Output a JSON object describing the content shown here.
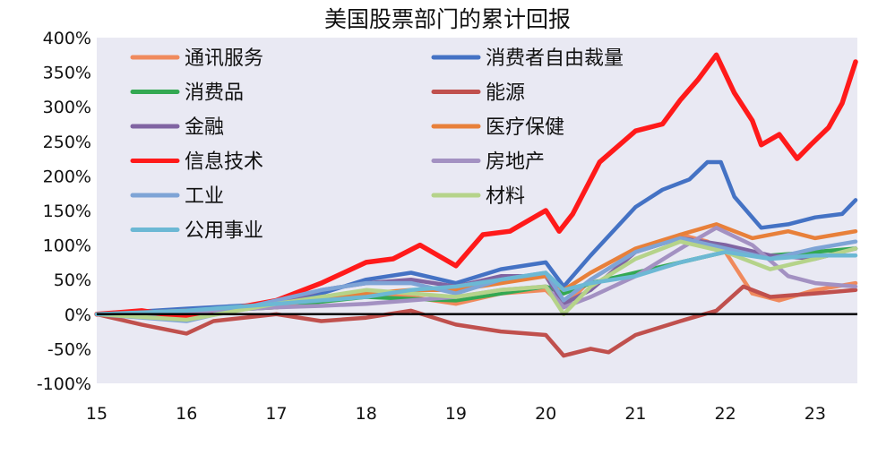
{
  "chart_data": {
    "type": "line",
    "title": "美国股票部门的累计回报",
    "xlabel": "",
    "ylabel": "",
    "x_ticks": [
      "15",
      "16",
      "17",
      "18",
      "19",
      "20",
      "21",
      "22",
      "23"
    ],
    "x_range": [
      2015.0,
      2023.47
    ],
    "ylim": [
      -100,
      400
    ],
    "y_ticks": [
      "400%",
      "350%",
      "300%",
      "250%",
      "200%",
      "150%",
      "100%",
      "50%",
      "0%",
      "-50%",
      "-100%"
    ],
    "grid": false,
    "legend_position": "top-left",
    "colors": {
      "plot_bg": "#e9e9f3",
      "zero_line": "#000000"
    },
    "series": [
      {
        "name": "通讯服务",
        "color": "#f08a5d",
        "x": [
          2015,
          2016,
          2017,
          2017.5,
          2018,
          2018.5,
          2019,
          2019.5,
          2020,
          2020.2,
          2020.5,
          2021,
          2021.5,
          2021.8,
          2022,
          2022.3,
          2022.6,
          2023,
          2023.45
        ],
        "y": [
          0,
          5,
          10,
          20,
          28,
          25,
          15,
          30,
          35,
          10,
          50,
          90,
          115,
          105,
          90,
          30,
          20,
          35,
          45
        ]
      },
      {
        "name": "消费者自由裁量",
        "color": "#4472c4",
        "x": [
          2015,
          2016,
          2017,
          2017.5,
          2018,
          2018.5,
          2019,
          2019.5,
          2020,
          2020.2,
          2020.5,
          2021,
          2021.3,
          2021.6,
          2021.8,
          2021.95,
          2022.1,
          2022.4,
          2022.7,
          2023,
          2023.3,
          2023.45
        ],
        "y": [
          0,
          8,
          15,
          30,
          50,
          60,
          45,
          65,
          75,
          40,
          85,
          155,
          180,
          195,
          220,
          220,
          170,
          125,
          130,
          140,
          145,
          165
        ]
      },
      {
        "name": "消费品",
        "color": "#33a852",
        "x": [
          2015,
          2016,
          2017,
          2017.5,
          2018,
          2018.5,
          2019,
          2019.5,
          2020,
          2020.2,
          2020.5,
          2021,
          2021.5,
          2022,
          2022.5,
          2023,
          2023.45
        ],
        "y": [
          0,
          3,
          10,
          18,
          25,
          22,
          20,
          30,
          40,
          30,
          45,
          60,
          75,
          90,
          85,
          90,
          95
        ]
      },
      {
        "name": "能源",
        "color": "#c0504d",
        "x": [
          2015,
          2015.5,
          2016,
          2016.3,
          2017,
          2017.5,
          2018,
          2018.5,
          2019,
          2019.5,
          2020,
          2020.2,
          2020.5,
          2020.7,
          2021,
          2021.5,
          2021.9,
          2022.2,
          2022.5,
          2023,
          2023.45
        ],
        "y": [
          0,
          -15,
          -28,
          -10,
          0,
          -10,
          -5,
          5,
          -15,
          -25,
          -30,
          -60,
          -50,
          -55,
          -30,
          -10,
          5,
          40,
          25,
          30,
          35
        ]
      },
      {
        "name": "金融",
        "color": "#8064a2",
        "x": [
          2015,
          2016,
          2017,
          2017.5,
          2018,
          2018.5,
          2019,
          2019.5,
          2020,
          2020.2,
          2020.5,
          2021,
          2021.5,
          2022,
          2022.5,
          2023,
          2023.45
        ],
        "y": [
          0,
          -5,
          15,
          35,
          45,
          50,
          40,
          55,
          55,
          15,
          35,
          90,
          110,
          100,
          85,
          80,
          95
        ]
      },
      {
        "name": "医疗保健",
        "color": "#e8803a",
        "x": [
          2015,
          2016,
          2017,
          2017.5,
          2018,
          2018.5,
          2019,
          2019.5,
          2020,
          2020.2,
          2020.5,
          2021,
          2021.5,
          2021.9,
          2022.3,
          2022.7,
          2023,
          2023.45
        ],
        "y": [
          0,
          5,
          10,
          25,
          30,
          35,
          35,
          45,
          55,
          35,
          60,
          95,
          115,
          130,
          110,
          120,
          110,
          120
        ]
      },
      {
        "name": "信息技术",
        "color": "#ff1a1a",
        "x": [
          2015,
          2015.5,
          2016,
          2016.5,
          2017,
          2017.5,
          2018,
          2018.3,
          2018.6,
          2019,
          2019.3,
          2019.6,
          2020,
          2020.15,
          2020.3,
          2020.6,
          2021,
          2021.3,
          2021.5,
          2021.7,
          2021.9,
          2022.1,
          2022.3,
          2022.4,
          2022.6,
          2022.8,
          2022.95,
          2023.15,
          2023.3,
          2023.45
        ],
        "y": [
          0,
          5,
          -5,
          8,
          20,
          45,
          75,
          80,
          100,
          70,
          115,
          120,
          150,
          120,
          145,
          220,
          265,
          275,
          310,
          340,
          375,
          320,
          280,
          245,
          260,
          225,
          245,
          270,
          305,
          365
        ]
      },
      {
        "name": "房地产",
        "color": "#a391c2",
        "x": [
          2015,
          2016,
          2017,
          2017.5,
          2018,
          2018.5,
          2019,
          2019.5,
          2020,
          2020.2,
          2020.5,
          2021,
          2021.5,
          2021.9,
          2022.3,
          2022.7,
          2023,
          2023.45
        ],
        "y": [
          0,
          3,
          10,
          12,
          15,
          20,
          25,
          35,
          40,
          10,
          25,
          55,
          95,
          125,
          100,
          55,
          45,
          40
        ]
      },
      {
        "name": "工业",
        "color": "#7ea4d6",
        "x": [
          2015,
          2016,
          2017,
          2017.5,
          2018,
          2018.5,
          2019,
          2019.5,
          2020,
          2020.2,
          2020.5,
          2021,
          2021.5,
          2022,
          2022.5,
          2023,
          2023.45
        ],
        "y": [
          0,
          -10,
          20,
          35,
          45,
          45,
          30,
          50,
          60,
          20,
          50,
          90,
          110,
          95,
          80,
          95,
          105
        ]
      },
      {
        "name": "材料",
        "color": "#b5d38a",
        "x": [
          2015,
          2016,
          2017,
          2017.5,
          2018,
          2018.5,
          2019,
          2019.5,
          2020,
          2020.2,
          2020.5,
          2021,
          2021.5,
          2022,
          2022.5,
          2023,
          2023.45
        ],
        "y": [
          0,
          -8,
          15,
          25,
          35,
          30,
          25,
          35,
          40,
          0,
          40,
          80,
          105,
          90,
          65,
          80,
          95
        ]
      },
      {
        "name": "公用事业",
        "color": "#6cb8d4",
        "x": [
          2015,
          2016,
          2017,
          2017.5,
          2018,
          2018.5,
          2019,
          2019.5,
          2020,
          2020.2,
          2020.5,
          2021,
          2021.5,
          2022,
          2022.5,
          2023,
          2023.45
        ],
        "y": [
          0,
          5,
          15,
          20,
          25,
          35,
          40,
          50,
          60,
          35,
          45,
          55,
          75,
          90,
          80,
          85,
          85
        ]
      }
    ]
  }
}
